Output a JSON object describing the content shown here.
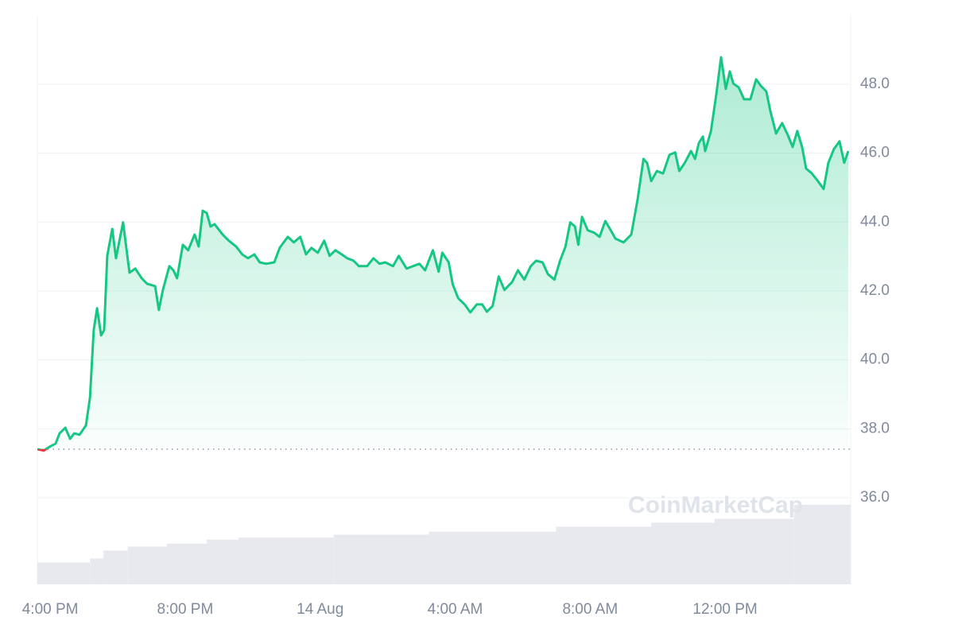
{
  "chart_data": {
    "type": "line",
    "watermark": "CoinMarketCap",
    "x": [
      -0.38,
      -0.19,
      -0.02,
      0.16,
      0.28,
      0.45,
      0.59,
      0.71,
      0.87,
      1.06,
      1.18,
      1.29,
      1.39,
      1.51,
      1.6,
      1.69,
      1.84,
      1.95,
      2.16,
      2.35,
      2.52,
      2.71,
      2.87,
      3.11,
      3.22,
      3.34,
      3.53,
      3.65,
      3.76,
      3.93,
      4.09,
      4.28,
      4.4,
      4.52,
      4.64,
      4.75,
      4.87,
      5.11,
      5.29,
      5.51,
      5.69,
      5.86,
      6.05,
      6.21,
      6.4,
      6.64,
      6.8,
      7.04,
      7.22,
      7.41,
      7.58,
      7.74,
      7.93,
      8.12,
      8.28,
      8.45,
      8.64,
      8.8,
      8.99,
      9.15,
      9.39,
      9.58,
      9.76,
      9.93,
      10.16,
      10.33,
      10.56,
      10.75,
      10.94,
      11.11,
      11.34,
      11.51,
      11.62,
      11.81,
      11.93,
      12.09,
      12.28,
      12.45,
      12.64,
      12.8,
      12.94,
      13.11,
      13.29,
      13.46,
      13.69,
      13.86,
      14.05,
      14.24,
      14.4,
      14.59,
      14.75,
      14.94,
      15.11,
      15.27,
      15.41,
      15.55,
      15.65,
      15.76,
      15.93,
      16.12,
      16.28,
      16.45,
      16.59,
      16.75,
      16.99,
      17.22,
      17.41,
      17.58,
      17.69,
      17.81,
      17.98,
      18.16,
      18.35,
      18.52,
      18.64,
      18.8,
      18.99,
      19.11,
      19.22,
      19.34,
      19.41,
      19.58,
      19.74,
      19.88,
      20.02,
      20.14,
      20.24,
      20.4,
      20.56,
      20.75,
      20.92,
      21.06,
      21.22,
      21.34,
      21.51,
      21.69,
      21.86,
      22.0,
      22.14,
      22.28,
      22.4,
      22.56,
      22.75,
      22.92,
      23.06,
      23.22,
      23.39,
      23.53,
      23.65
    ],
    "series": [
      {
        "color": "#16c784",
        "below_color": "#ea3943",
        "values": [
          37.41,
          37.37,
          37.48,
          37.57,
          37.87,
          38.03,
          37.71,
          37.87,
          37.83,
          38.1,
          38.91,
          40.87,
          41.5,
          40.71,
          40.87,
          43.02,
          43.8,
          42.95,
          43.99,
          42.53,
          42.65,
          42.37,
          42.21,
          42.14,
          41.45,
          42.03,
          42.72,
          42.6,
          42.37,
          43.34,
          43.18,
          43.64,
          43.29,
          44.33,
          44.26,
          43.87,
          43.94,
          43.64,
          43.46,
          43.29,
          43.06,
          42.95,
          43.06,
          42.83,
          42.79,
          42.83,
          43.25,
          43.57,
          43.41,
          43.57,
          43.06,
          43.25,
          43.11,
          43.46,
          43.02,
          43.18,
          43.06,
          42.95,
          42.88,
          42.72,
          42.72,
          42.95,
          42.79,
          42.83,
          42.72,
          43.02,
          42.65,
          42.72,
          42.79,
          42.6,
          43.18,
          42.56,
          43.11,
          42.83,
          42.19,
          41.79,
          41.61,
          41.38,
          41.61,
          41.61,
          41.4,
          41.56,
          42.42,
          42.03,
          42.26,
          42.6,
          42.33,
          42.72,
          42.88,
          42.83,
          42.49,
          42.33,
          42.88,
          43.29,
          43.99,
          43.87,
          43.34,
          44.15,
          43.76,
          43.69,
          43.57,
          44.03,
          43.8,
          43.52,
          43.41,
          43.64,
          44.68,
          45.83,
          45.71,
          45.19,
          45.48,
          45.41,
          45.95,
          46.02,
          45.48,
          45.71,
          46.06,
          45.83,
          46.29,
          46.48,
          46.06,
          46.64,
          47.72,
          48.78,
          47.86,
          48.37,
          48.02,
          47.91,
          47.56,
          47.56,
          48.14,
          47.95,
          47.79,
          47.22,
          46.57,
          46.87,
          46.52,
          46.18,
          46.64,
          46.18,
          45.55,
          45.42,
          45.19,
          44.96,
          45.72,
          46.11,
          46.34,
          45.72,
          46.06
        ]
      }
    ],
    "reference_value": 37.41,
    "xlim": [
      -0.38,
      23.72
    ],
    "xticks": [
      {
        "value": 0,
        "label": "4:00 PM"
      },
      {
        "value": 4,
        "label": "8:00 PM"
      },
      {
        "value": 8,
        "label": "14 Aug"
      },
      {
        "value": 12,
        "label": "4:00 AM"
      },
      {
        "value": 16,
        "label": "8:00 AM"
      },
      {
        "value": 20,
        "label": "12:00 PM"
      }
    ],
    "ylim": [
      33.49,
      49.98
    ],
    "yticks": [
      {
        "value": 36,
        "label": "36.0"
      },
      {
        "value": 38,
        "label": "38.0"
      },
      {
        "value": 40,
        "label": "40.0"
      },
      {
        "value": 42,
        "label": "42.0"
      },
      {
        "value": 44,
        "label": "44.0"
      },
      {
        "value": 46,
        "label": "46.0"
      },
      {
        "value": 48,
        "label": "48.0"
      }
    ],
    "grid": true,
    "volume": {
      "color": "#e7e9ef",
      "vlim": [
        0,
        100
      ],
      "bins": [
        -0.38,
        1.18,
        1.58,
        2.3,
        3.46,
        4.64,
        5.58,
        8.4,
        11.22,
        14.99,
        17.81,
        19.69,
        22.04,
        23.72
      ],
      "values": [
        22,
        26,
        34,
        38,
        41,
        45,
        47,
        50,
        53,
        58,
        62,
        66,
        80
      ]
    }
  }
}
